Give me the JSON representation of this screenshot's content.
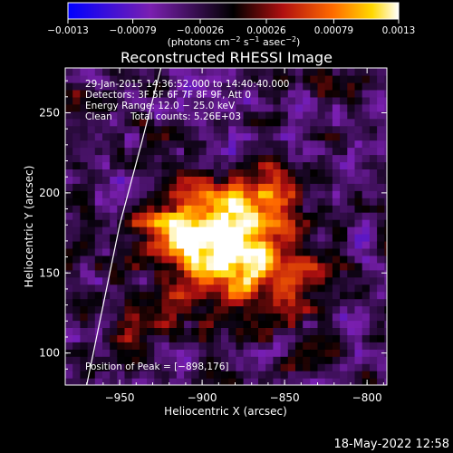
{
  "chart_data": {
    "type": "heatmap",
    "title": "Reconstructed RHESSI Image",
    "xlabel": "Heliocentric X (arcsec)",
    "ylabel": "Heliocentric Y (arcsec)",
    "xlim": [
      -983,
      -788
    ],
    "ylim": [
      80,
      278
    ],
    "xticks": [
      -950,
      -900,
      -850,
      -800
    ],
    "xtick_labels": [
      "−950",
      "−900",
      "−850",
      "−800"
    ],
    "yticks": [
      100,
      150,
      200,
      250
    ],
    "ytick_labels": [
      "100",
      "150",
      "200",
      "250"
    ],
    "colorbar": {
      "range": [
        -0.0013,
        0.0013
      ],
      "ticks": [
        -0.0013,
        -0.00079,
        -0.00026,
        0.00026,
        0.00079,
        0.0013
      ],
      "tick_labels": [
        "−0.0013",
        "−0.00079",
        "−0.00026",
        "0.00026",
        "0.00079",
        "0.0013"
      ],
      "unit_prefix": "(photons cm",
      "unit_e1": "−2",
      "unit_mid1": " s",
      "unit_e2": "−1",
      "unit_mid2": " asec",
      "unit_e3": "−2",
      "unit_suffix": ")"
    },
    "annotations": {
      "time_range": "29‑Jan‑2015 14:36:52.000 to 14:40:40.000",
      "detectors": "Detectors: 3F 5F 6F 7F 8F 9F, Att 0",
      "energy": "Energy Range: 12.0 − 25.0 keV",
      "method": "Clean",
      "total_counts": "Total counts: 5.26E+03",
      "peak": "Position of Peak = [−898,176]"
    },
    "peak": {
      "x": -898,
      "y": 176
    },
    "sources": [
      {
        "x": -898,
        "y": 176,
        "amp": 1.0,
        "sx": 26,
        "sy": 18
      },
      {
        "x": -878,
        "y": 150,
        "amp": 0.62,
        "sx": 22,
        "sy": 20
      },
      {
        "x": -860,
        "y": 200,
        "amp": 0.42,
        "sx": 14,
        "sy": 14
      },
      {
        "x": -935,
        "y": 118,
        "amp": 0.3,
        "sx": 14,
        "sy": 12
      },
      {
        "x": -845,
        "y": 140,
        "amp": 0.35,
        "sx": 10,
        "sy": 12
      }
    ],
    "limb_points": [
      [
        -970,
        80
      ],
      [
        -960,
        130
      ],
      [
        -950,
        180
      ],
      [
        -937,
        230
      ],
      [
        -925,
        278
      ]
    ]
  },
  "footer": {
    "timestamp": "18‑May‑2022 12:58"
  }
}
